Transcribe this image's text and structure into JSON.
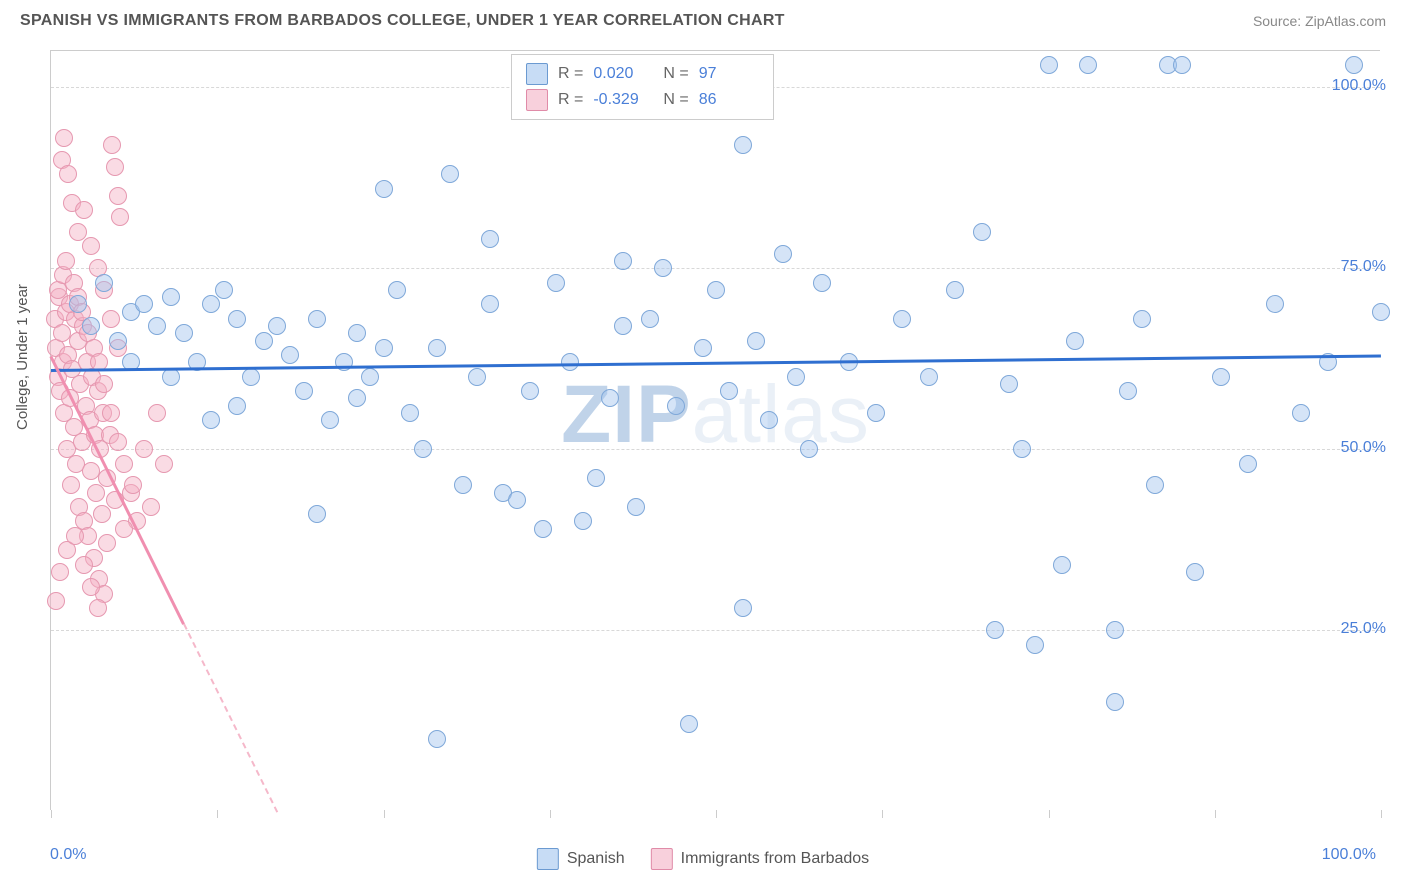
{
  "title": "SPANISH VS IMMIGRANTS FROM BARBADOS COLLEGE, UNDER 1 YEAR CORRELATION CHART",
  "source_label": "Source: ",
  "source_name": "ZipAtlas.com",
  "y_axis_label": "College, Under 1 year",
  "watermark_bold": "ZIP",
  "watermark_rest": "atlas",
  "x_min_label": "0.0%",
  "x_max_label": "100.0%",
  "y_ticks": [
    {
      "pct": 25,
      "label": "25.0%"
    },
    {
      "pct": 50,
      "label": "50.0%"
    },
    {
      "pct": 75,
      "label": "75.0%"
    },
    {
      "pct": 100,
      "label": "100.0%"
    }
  ],
  "chart": {
    "type": "scatter",
    "xlim": [
      0,
      100
    ],
    "ylim": [
      0,
      105
    ],
    "grid_color": "#d8d8d8",
    "background_color": "#ffffff",
    "x_tick_positions": [
      0,
      12.5,
      25,
      37.5,
      50,
      62.5,
      75,
      87.5,
      100
    ]
  },
  "stats_legend": [
    {
      "color": "blue",
      "r_label": "R =",
      "r_val": "0.020",
      "n_label": "N =",
      "n_val": "97"
    },
    {
      "color": "pink",
      "r_label": "R =",
      "r_val": "-0.329",
      "n_label": "N =",
      "n_val": "86"
    }
  ],
  "bottom_legend": [
    {
      "color": "blue",
      "label": "Spanish"
    },
    {
      "color": "pink",
      "label": "Immigrants from Barbados"
    }
  ],
  "series_blue": {
    "color_fill": "rgba(162,196,238,0.45)",
    "color_stroke": "#7fa8d9",
    "trend": {
      "x1": 0,
      "y1": 61,
      "x2": 100,
      "y2": 63
    },
    "points": [
      [
        2,
        70
      ],
      [
        3,
        67
      ],
      [
        4,
        73
      ],
      [
        5,
        65
      ],
      [
        6,
        69
      ],
      [
        6,
        62
      ],
      [
        7,
        70
      ],
      [
        8,
        67
      ],
      [
        9,
        71
      ],
      [
        9,
        60
      ],
      [
        10,
        66
      ],
      [
        11,
        62
      ],
      [
        12,
        54
      ],
      [
        12,
        70
      ],
      [
        13,
        72
      ],
      [
        14,
        56
      ],
      [
        14,
        68
      ],
      [
        15,
        60
      ],
      [
        16,
        65
      ],
      [
        17,
        67
      ],
      [
        18,
        63
      ],
      [
        19,
        58
      ],
      [
        20,
        41
      ],
      [
        20,
        68
      ],
      [
        21,
        54
      ],
      [
        22,
        62
      ],
      [
        23,
        57
      ],
      [
        23,
        66
      ],
      [
        24,
        60
      ],
      [
        25,
        86
      ],
      [
        25,
        64
      ],
      [
        26,
        72
      ],
      [
        27,
        55
      ],
      [
        28,
        50
      ],
      [
        29,
        64
      ],
      [
        29,
        10
      ],
      [
        30,
        88
      ],
      [
        31,
        45
      ],
      [
        32,
        60
      ],
      [
        33,
        79
      ],
      [
        33,
        70
      ],
      [
        34,
        44
      ],
      [
        35,
        43
      ],
      [
        36,
        58
      ],
      [
        37,
        39
      ],
      [
        38,
        73
      ],
      [
        39,
        62
      ],
      [
        40,
        40
      ],
      [
        41,
        46
      ],
      [
        42,
        57
      ],
      [
        43,
        76
      ],
      [
        43,
        67
      ],
      [
        44,
        42
      ],
      [
        45,
        68
      ],
      [
        46,
        75
      ],
      [
        47,
        56
      ],
      [
        48,
        12
      ],
      [
        49,
        64
      ],
      [
        50,
        72
      ],
      [
        51,
        58
      ],
      [
        52,
        92
      ],
      [
        52,
        28
      ],
      [
        53,
        65
      ],
      [
        54,
        54
      ],
      [
        55,
        77
      ],
      [
        56,
        60
      ],
      [
        57,
        50
      ],
      [
        58,
        73
      ],
      [
        60,
        62
      ],
      [
        62,
        55
      ],
      [
        64,
        68
      ],
      [
        66,
        60
      ],
      [
        68,
        72
      ],
      [
        70,
        80
      ],
      [
        71,
        25
      ],
      [
        72,
        59
      ],
      [
        73,
        50
      ],
      [
        74,
        23
      ],
      [
        75,
        103
      ],
      [
        76,
        34
      ],
      [
        77,
        65
      ],
      [
        78,
        103
      ],
      [
        80,
        15
      ],
      [
        80,
        25
      ],
      [
        81,
        58
      ],
      [
        82,
        68
      ],
      [
        83,
        45
      ],
      [
        84,
        103
      ],
      [
        85,
        103
      ],
      [
        86,
        33
      ],
      [
        88,
        60
      ],
      [
        90,
        48
      ],
      [
        92,
        70
      ],
      [
        94,
        55
      ],
      [
        96,
        62
      ],
      [
        98,
        103
      ],
      [
        100,
        69
      ]
    ]
  },
  "series_pink": {
    "color_fill": "rgba(244,176,196,0.45)",
    "color_stroke": "#e698b0",
    "trend": {
      "x1": 0,
      "y1": 63,
      "x2": 17,
      "y2": 0,
      "dashed_after_x": 10
    },
    "points": [
      [
        0.3,
        68
      ],
      [
        0.4,
        64
      ],
      [
        0.5,
        60
      ],
      [
        0.6,
        71
      ],
      [
        0.7,
        58
      ],
      [
        0.8,
        66
      ],
      [
        0.9,
        62
      ],
      [
        1.0,
        55
      ],
      [
        1.1,
        69
      ],
      [
        1.2,
        50
      ],
      [
        1.3,
        63
      ],
      [
        1.4,
        57
      ],
      [
        1.5,
        45
      ],
      [
        1.6,
        61
      ],
      [
        1.7,
        53
      ],
      [
        1.8,
        68
      ],
      [
        1.9,
        48
      ],
      [
        2.0,
        65
      ],
      [
        2.1,
        42
      ],
      [
        2.2,
        59
      ],
      [
        2.3,
        51
      ],
      [
        2.4,
        67
      ],
      [
        2.5,
        40
      ],
      [
        2.6,
        56
      ],
      [
        2.7,
        62
      ],
      [
        2.8,
        38
      ],
      [
        2.9,
        54
      ],
      [
        3.0,
        47
      ],
      [
        3.1,
        60
      ],
      [
        3.2,
        35
      ],
      [
        3.3,
        52
      ],
      [
        3.4,
        44
      ],
      [
        3.5,
        58
      ],
      [
        3.6,
        32
      ],
      [
        3.7,
        50
      ],
      [
        3.8,
        41
      ],
      [
        3.9,
        55
      ],
      [
        4.0,
        30
      ],
      [
        4.2,
        46
      ],
      [
        4.4,
        52
      ],
      [
        4.6,
        92
      ],
      [
        4.8,
        89
      ],
      [
        5.0,
        85
      ],
      [
        5.2,
        82
      ],
      [
        0.8,
        90
      ],
      [
        1.0,
        93
      ],
      [
        1.3,
        88
      ],
      [
        1.6,
        84
      ],
      [
        0.5,
        72
      ],
      [
        0.9,
        74
      ],
      [
        1.1,
        76
      ],
      [
        1.4,
        70
      ],
      [
        1.7,
        73
      ],
      [
        2.0,
        71
      ],
      [
        2.3,
        69
      ],
      [
        2.8,
        66
      ],
      [
        3.2,
        64
      ],
      [
        3.6,
        62
      ],
      [
        4.0,
        59
      ],
      [
        4.5,
        55
      ],
      [
        5.0,
        51
      ],
      [
        5.5,
        48
      ],
      [
        6.0,
        44
      ],
      [
        6.5,
        40
      ],
      [
        0.4,
        29
      ],
      [
        0.7,
        33
      ],
      [
        1.2,
        36
      ],
      [
        1.8,
        38
      ],
      [
        2.5,
        34
      ],
      [
        3.0,
        31
      ],
      [
        3.5,
        28
      ],
      [
        4.2,
        37
      ],
      [
        4.8,
        43
      ],
      [
        5.5,
        39
      ],
      [
        6.2,
        45
      ],
      [
        7.0,
        50
      ],
      [
        7.5,
        42
      ],
      [
        8.0,
        55
      ],
      [
        8.5,
        48
      ],
      [
        2.0,
        80
      ],
      [
        2.5,
        83
      ],
      [
        3.0,
        78
      ],
      [
        3.5,
        75
      ],
      [
        4.0,
        72
      ],
      [
        4.5,
        68
      ],
      [
        5.0,
        64
      ]
    ]
  }
}
